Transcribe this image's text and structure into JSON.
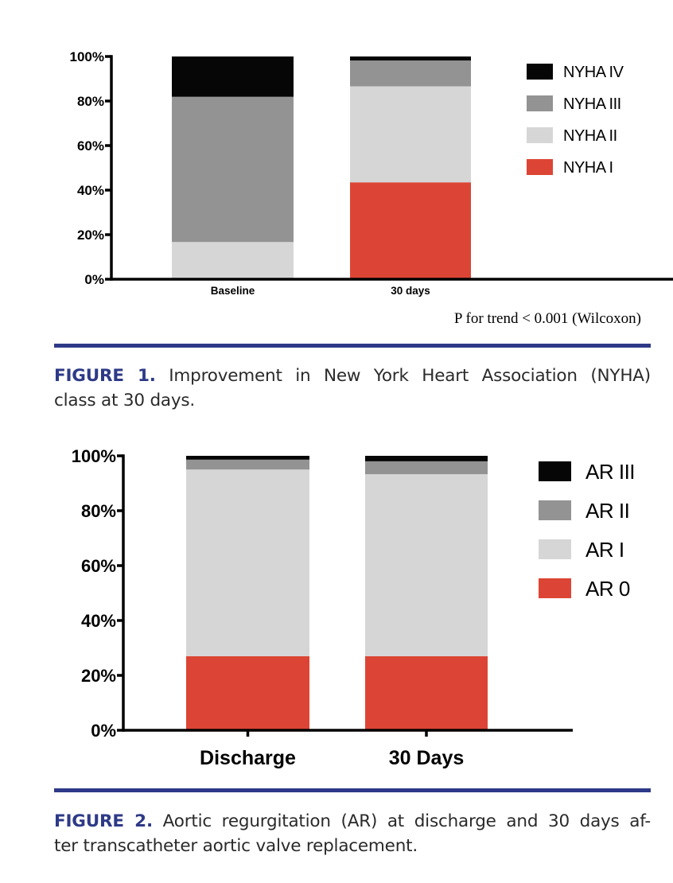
{
  "colors": {
    "black": "#060606",
    "dark_grey": "#939393",
    "light_grey": "#d6d6d6",
    "red": "#dc4535",
    "navy": "#2e3a87"
  },
  "chart_data": [
    {
      "type": "bar",
      "stacked": true,
      "categories": [
        "Baseline",
        "30 days"
      ],
      "series": [
        {
          "name": "NYHA I",
          "color": "#dc4535",
          "values": [
            0,
            43.5
          ]
        },
        {
          "name": "NYHA II",
          "color": "#d6d6d6",
          "values": [
            16.7,
            43.1
          ]
        },
        {
          "name": "NYHA III",
          "color": "#939393",
          "values": [
            65.2,
            11.6
          ]
        },
        {
          "name": "NYHA IV",
          "color": "#060606",
          "values": [
            18.1,
            1.8
          ]
        }
      ],
      "legend_order": [
        "NYHA IV",
        "NYHA III",
        "NYHA II",
        "NYHA I"
      ],
      "yticks": [
        "0%",
        "20%",
        "40%",
        "60%",
        "80%",
        "100%"
      ],
      "ylim": [
        0,
        100
      ],
      "ylabel": "",
      "xlabel": "",
      "annotation": "P for trend < 0.001 (Wilcoxon)",
      "legend": "right"
    },
    {
      "type": "bar",
      "stacked": true,
      "categories": [
        "Discharge",
        "30 Days"
      ],
      "series": [
        {
          "name": "AR 0",
          "color": "#dc4535",
          "values": [
            27,
            27
          ]
        },
        {
          "name": "AR I",
          "color": "#d6d6d6",
          "values": [
            68,
            66.3
          ]
        },
        {
          "name": "AR II",
          "color": "#939393",
          "values": [
            3.6,
            4.7
          ]
        },
        {
          "name": "AR III",
          "color": "#060606",
          "values": [
            1.4,
            2.0
          ]
        }
      ],
      "legend_order": [
        "AR III",
        "AR II",
        "AR I",
        "AR 0"
      ],
      "yticks": [
        "0%",
        "20%",
        "40%",
        "60%",
        "80%",
        "100%"
      ],
      "ylim": [
        0,
        100
      ],
      "ylabel": "",
      "xlabel": "",
      "legend": "right"
    }
  ],
  "captions": [
    {
      "label": "FIGURE 1.",
      "line1": "Improvement in New York Heart Association (NYHA)",
      "line2": "class at 30 days."
    },
    {
      "label": "FIGURE 2.",
      "line1": "Aortic regurgitation (AR) at discharge and 30 days af-",
      "line2": "ter transcatheter aortic valve replacement."
    }
  ]
}
